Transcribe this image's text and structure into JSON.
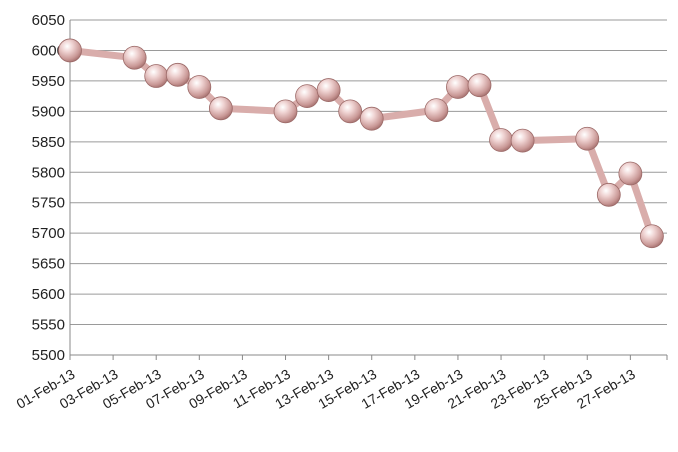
{
  "chart_data": {
    "type": "line",
    "title": "",
    "xlabel": "",
    "ylabel": "",
    "ylim": [
      5500,
      6050
    ],
    "y_ticks": [
      5500,
      5550,
      5600,
      5650,
      5700,
      5750,
      5800,
      5850,
      5900,
      5950,
      6000,
      6050
    ],
    "x_tick_labels": [
      "01-Feb-13",
      "03-Feb-13",
      "05-Feb-13",
      "07-Feb-13",
      "09-Feb-13",
      "11-Feb-13",
      "13-Feb-13",
      "15-Feb-13",
      "17-Feb-13",
      "19-Feb-13",
      "21-Feb-13",
      "23-Feb-13",
      "25-Feb-13",
      "27-Feb-13"
    ],
    "grid": true,
    "legend": "none",
    "line_color": "#d9adab",
    "marker_color": "#e2b9b7",
    "series": [
      {
        "points": [
          {
            "x": "01-Feb-13",
            "y": 6000
          },
          {
            "x": "04-Feb-13",
            "y": 5988
          },
          {
            "x": "05-Feb-13",
            "y": 5958
          },
          {
            "x": "06-Feb-13",
            "y": 5960
          },
          {
            "x": "07-Feb-13",
            "y": 5940
          },
          {
            "x": "08-Feb-13",
            "y": 5905
          },
          {
            "x": "11-Feb-13",
            "y": 5900
          },
          {
            "x": "12-Feb-13",
            "y": 5925
          },
          {
            "x": "13-Feb-13",
            "y": 5935
          },
          {
            "x": "14-Feb-13",
            "y": 5900
          },
          {
            "x": "15-Feb-13",
            "y": 5888
          },
          {
            "x": "18-Feb-13",
            "y": 5902
          },
          {
            "x": "19-Feb-13",
            "y": 5940
          },
          {
            "x": "20-Feb-13",
            "y": 5943
          },
          {
            "x": "21-Feb-13",
            "y": 5853
          },
          {
            "x": "22-Feb-13",
            "y": 5852
          },
          {
            "x": "25-Feb-13",
            "y": 5855
          },
          {
            "x": "26-Feb-13",
            "y": 5763
          },
          {
            "x": "27-Feb-13",
            "y": 5798
          },
          {
            "x": "28-Feb-13",
            "y": 5695
          }
        ]
      }
    ]
  }
}
